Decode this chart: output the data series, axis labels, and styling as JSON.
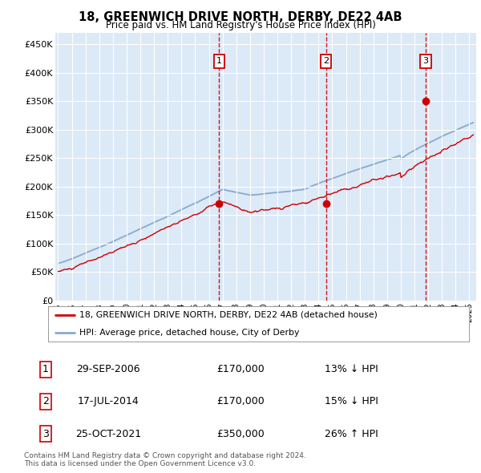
{
  "title": "18, GREENWICH DRIVE NORTH, DERBY, DE22 4AB",
  "subtitle": "Price paid vs. HM Land Registry's House Price Index (HPI)",
  "ylabel_ticks": [
    "£0",
    "£50K",
    "£100K",
    "£150K",
    "£200K",
    "£250K",
    "£300K",
    "£350K",
    "£400K",
    "£450K"
  ],
  "ytick_values": [
    0,
    50000,
    100000,
    150000,
    200000,
    250000,
    300000,
    350000,
    400000,
    450000
  ],
  "ylim": [
    0,
    470000
  ],
  "xlim_start": 1994.8,
  "xlim_end": 2025.5,
  "sale_dates": [
    2006.75,
    2014.54,
    2021.81
  ],
  "sale_prices": [
    170000,
    170000,
    350000
  ],
  "sale_labels": [
    "1",
    "2",
    "3"
  ],
  "legend_line1": "18, GREENWICH DRIVE NORTH, DERBY, DE22 4AB (detached house)",
  "legend_line2": "HPI: Average price, detached house, City of Derby",
  "table_rows": [
    [
      "1",
      "29-SEP-2006",
      "£170,000",
      "13% ↓ HPI"
    ],
    [
      "2",
      "17-JUL-2014",
      "£170,000",
      "15% ↓ HPI"
    ],
    [
      "3",
      "25-OCT-2021",
      "£350,000",
      "26% ↑ HPI"
    ]
  ],
  "footer": "Contains HM Land Registry data © Crown copyright and database right 2024.\nThis data is licensed under the Open Government Licence v3.0.",
  "bg_color": "#dce9f7",
  "line_color_red": "#cc0000",
  "line_color_blue": "#88aacc",
  "grid_color": "#ffffff",
  "marker_box_color": "#cc0000",
  "fig_width": 6.0,
  "fig_height": 5.9
}
